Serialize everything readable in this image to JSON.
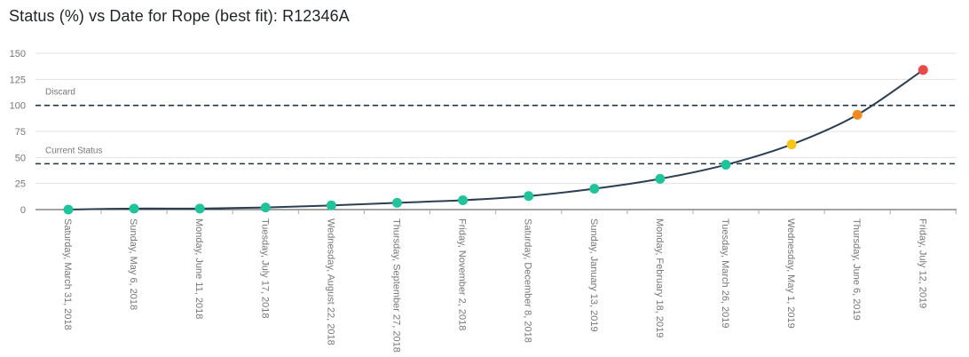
{
  "chart_data": {
    "type": "line",
    "title": "Status (%) vs Date for Rope (best fit): R12346A",
    "xlabel": "",
    "ylabel": "",
    "ylim": [
      0,
      150
    ],
    "y_ticks": [
      0,
      25,
      50,
      75,
      100,
      125,
      150
    ],
    "grid": true,
    "categories": [
      "Saturday, March 31, 2018",
      "Sunday, May 6, 2018",
      "Monday, June 11, 2018",
      "Tuesday, July 17, 2018",
      "Wednesday, August 22, 2018",
      "Thursday, September 27, 2018",
      "Friday, November 2, 2018",
      "Saturday, December 8, 2018",
      "Sunday, January 13, 2019",
      "Monday, February 18, 2019",
      "Tuesday, March 26, 2019",
      "Wednesday, May 1, 2019",
      "Thursday, June 6, 2019",
      "Friday, July 12, 2019"
    ],
    "series": [
      {
        "values": [
          0,
          1,
          1,
          2,
          4,
          6.5,
          9,
          13,
          20,
          29.5,
          43,
          62.5,
          91,
          134
        ],
        "point_colors": [
          "#20c39a",
          "#20c39a",
          "#20c39a",
          "#20c39a",
          "#20c39a",
          "#20c39a",
          "#20c39a",
          "#20c39a",
          "#20c39a",
          "#20c39a",
          "#20c39a",
          "#f5c518",
          "#f08a24",
          "#e84a4a"
        ],
        "line_color": "#2c3e50"
      }
    ],
    "reference_lines": [
      {
        "label": "Discard",
        "value": 100
      },
      {
        "label": "Current Status",
        "value": 44
      }
    ]
  }
}
